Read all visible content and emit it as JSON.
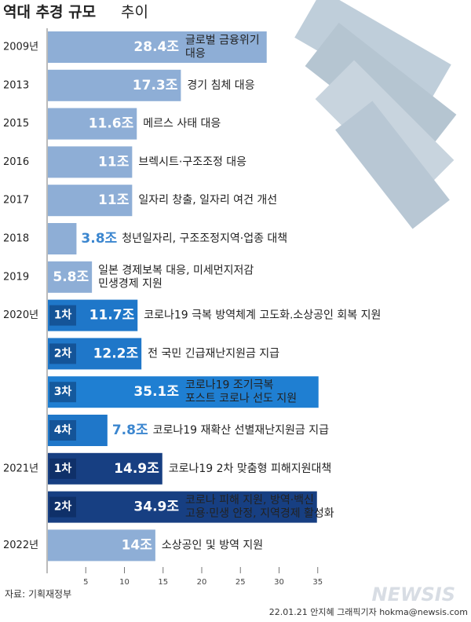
{
  "chart_data": {
    "type": "hbar",
    "title": "역대 추경 규모",
    "title_suffix": "추이",
    "categories": [
      "2009년",
      "2013",
      "2015",
      "2016",
      "2017",
      "2018",
      "2019",
      "2020년",
      null,
      null,
      null,
      "2021년",
      null,
      "2022년"
    ],
    "round_labels": [
      null,
      null,
      null,
      null,
      null,
      null,
      null,
      "1차",
      "2차",
      "3차",
      "4차",
      "1차",
      "2차",
      null
    ],
    "values": [
      28.4,
      17.3,
      11.6,
      11,
      11,
      3.8,
      5.8,
      11.7,
      12.2,
      35.1,
      7.8,
      14.9,
      34.9,
      14
    ],
    "value_labels": [
      "28.4조",
      "17.3조",
      "11.6조",
      "11조",
      "11조",
      "3.8조",
      "5.8조",
      "11.7조",
      "12.2조",
      "35.1조",
      "7.8조",
      "14.9조",
      "34.9조",
      "14조"
    ],
    "value_label_inside": [
      true,
      true,
      true,
      true,
      true,
      false,
      true,
      true,
      true,
      true,
      false,
      true,
      true,
      true
    ],
    "descriptions": [
      [
        "글로벌 금융위기",
        "대응"
      ],
      [
        "경기 침체 대응"
      ],
      [
        "메르스 사태 대응"
      ],
      [
        "브렉시트·구조조정 대응"
      ],
      [
        "일자리 창출, 일자리 여건 개선"
      ],
      [
        "청년일자리, 구조조정지역·업종 대책"
      ],
      [
        "일본 경제보복 대응, 미세먼지저감",
        "민생경제 지원"
      ],
      [
        "코로나19 극복 방역체계 고도화.소상공인 회복 지원"
      ],
      [
        "전 국민 긴급재난지원금 지급"
      ],
      [
        "코로나19 조기극복",
        "포스트 코로나 선도 지원"
      ],
      [
        "코로나19 재확산 선별재난지원금 지급"
      ],
      [
        "코로나19 2차 맞춤형 피해지원대책"
      ],
      [
        "코로나 피해 지원, 방역·백신",
        "고용·민생 안정, 지역경제 활성화"
      ],
      [
        "소상공인 및 방역 지원"
      ]
    ],
    "colors": [
      "#8eaed6",
      "#8eaed6",
      "#8eaed6",
      "#8eaed6",
      "#8eaed6",
      "#8eaed6",
      "#8eaed6",
      "#1f77c9",
      "#1f77c9",
      "#1f7fd2",
      "#1f77c9",
      "#173f82",
      "#173f82",
      "#8eaed6"
    ],
    "outside_label_color": "#3b86cf",
    "xlim": [
      0,
      40
    ],
    "xticks": [
      5,
      10,
      15,
      20,
      25,
      30,
      35
    ],
    "source": "자료: 기획재정부",
    "credit": "22.01.21 안지혜 그래픽기자 hokma@newsis.com",
    "logo": "NEWSIS"
  }
}
